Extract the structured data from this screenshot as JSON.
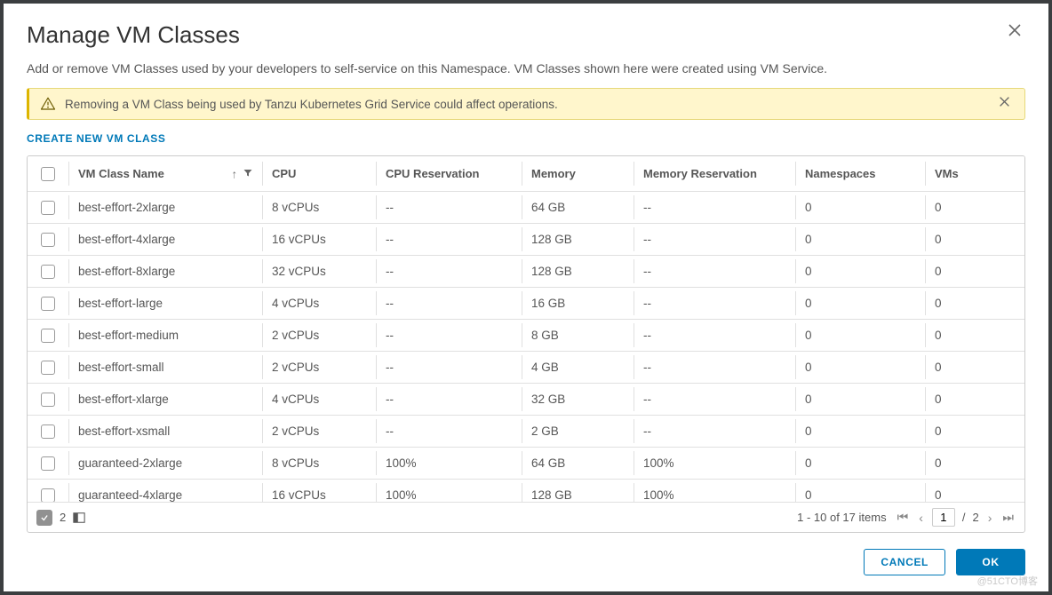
{
  "dialog": {
    "title": "Manage VM Classes",
    "description": "Add or remove VM Classes used by your developers to self-service on this Namespace. VM Classes shown here were created using VM Service."
  },
  "alert": {
    "text": "Removing a VM Class being used by Tanzu Kubernetes Grid Service could affect operations.",
    "icon": "warning-triangle"
  },
  "actions": {
    "create_link": "CREATE NEW VM CLASS",
    "cancel": "CANCEL",
    "ok": "OK"
  },
  "table": {
    "columns": {
      "name": "VM Class Name",
      "cpu": "CPU",
      "cpu_reservation": "CPU Reservation",
      "memory": "Memory",
      "memory_reservation": "Memory Reservation",
      "namespaces": "Namespaces",
      "vms": "VMs"
    },
    "sort": {
      "column": "name",
      "dir": "asc"
    },
    "rows": [
      {
        "name": "best-effort-2xlarge",
        "cpu": "8 vCPUs",
        "cpu_res": "--",
        "mem": "64 GB",
        "mem_res": "--",
        "ns": "0",
        "vms": "0"
      },
      {
        "name": "best-effort-4xlarge",
        "cpu": "16 vCPUs",
        "cpu_res": "--",
        "mem": "128 GB",
        "mem_res": "--",
        "ns": "0",
        "vms": "0"
      },
      {
        "name": "best-effort-8xlarge",
        "cpu": "32 vCPUs",
        "cpu_res": "--",
        "mem": "128 GB",
        "mem_res": "--",
        "ns": "0",
        "vms": "0"
      },
      {
        "name": "best-effort-large",
        "cpu": "4 vCPUs",
        "cpu_res": "--",
        "mem": "16 GB",
        "mem_res": "--",
        "ns": "0",
        "vms": "0"
      },
      {
        "name": "best-effort-medium",
        "cpu": "2 vCPUs",
        "cpu_res": "--",
        "mem": "8 GB",
        "mem_res": "--",
        "ns": "0",
        "vms": "0"
      },
      {
        "name": "best-effort-small",
        "cpu": "2 vCPUs",
        "cpu_res": "--",
        "mem": "4 GB",
        "mem_res": "--",
        "ns": "0",
        "vms": "0"
      },
      {
        "name": "best-effort-xlarge",
        "cpu": "4 vCPUs",
        "cpu_res": "--",
        "mem": "32 GB",
        "mem_res": "--",
        "ns": "0",
        "vms": "0"
      },
      {
        "name": "best-effort-xsmall",
        "cpu": "2 vCPUs",
        "cpu_res": "--",
        "mem": "2 GB",
        "mem_res": "--",
        "ns": "0",
        "vms": "0"
      },
      {
        "name": "guaranteed-2xlarge",
        "cpu": "8 vCPUs",
        "cpu_res": "100%",
        "mem": "64 GB",
        "mem_res": "100%",
        "ns": "0",
        "vms": "0"
      },
      {
        "name": "guaranteed-4xlarge",
        "cpu": "16 vCPUs",
        "cpu_res": "100%",
        "mem": "128 GB",
        "mem_res": "100%",
        "ns": "0",
        "vms": "0"
      }
    ]
  },
  "footer": {
    "selected_count": "2",
    "range_text": "1 - 10 of 17 items",
    "page_current": "1",
    "page_total": "2"
  },
  "watermark": "@51CTO博客",
  "colors": {
    "accent": "#0079b8",
    "alert_bg": "#fff6cc",
    "alert_border": "#e6d87a",
    "alert_accent": "#ddb500",
    "border": "#cccccc",
    "row_border": "#e0e0e0",
    "text": "#565656"
  }
}
